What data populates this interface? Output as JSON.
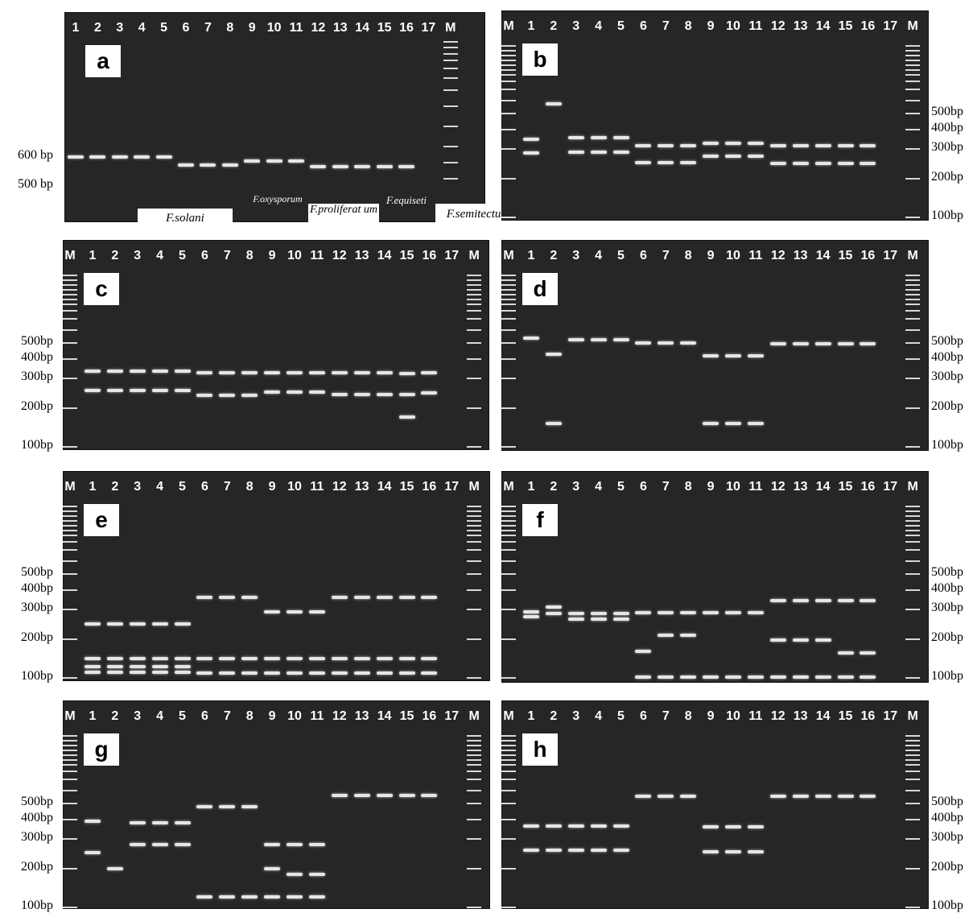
{
  "panels": [
    {
      "letter": "a",
      "lanes": [
        "1",
        "2",
        "3",
        "4",
        "5",
        "6",
        "7",
        "8",
        "9",
        "10",
        "11",
        "12",
        "13",
        "14",
        "15",
        "16",
        "17",
        "M"
      ],
      "size_labels": [
        "600 bp",
        "500 bp"
      ],
      "species": [
        "F.solani",
        "F.oxysporum",
        "F.proliferat um",
        "F.equiseti",
        "F.semitectum"
      ]
    },
    {
      "letter": "b",
      "lanes": [
        "M",
        "1",
        "2",
        "3",
        "4",
        "5",
        "6",
        "7",
        "8",
        "9",
        "10",
        "11",
        "12",
        "13",
        "14",
        "15",
        "16",
        "17",
        "M"
      ],
      "size_labels": [
        "500bp",
        "400bp",
        "300bp",
        "200bp",
        "100bp"
      ]
    },
    {
      "letter": "c",
      "lanes": [
        "M",
        "1",
        "2",
        "3",
        "4",
        "5",
        "6",
        "7",
        "8",
        "9",
        "10",
        "11",
        "12",
        "13",
        "14",
        "15",
        "16",
        "17",
        "M"
      ],
      "size_labels": [
        "500bp",
        "400bp",
        "300bp",
        "200bp",
        "100bp"
      ]
    },
    {
      "letter": "d",
      "lanes": [
        "M",
        "1",
        "2",
        "3",
        "4",
        "5",
        "6",
        "7",
        "8",
        "9",
        "10",
        "11",
        "12",
        "13",
        "14",
        "15",
        "16",
        "17",
        "M"
      ],
      "size_labels": [
        "500bp",
        "400bp",
        "300bp",
        "200bp",
        "100bp"
      ]
    },
    {
      "letter": "e",
      "lanes": [
        "M",
        "1",
        "2",
        "3",
        "4",
        "5",
        "6",
        "7",
        "8",
        "9",
        "10",
        "11",
        "12",
        "13",
        "14",
        "15",
        "16",
        "17",
        "M"
      ],
      "size_labels": [
        "500bp",
        "400bp",
        "300bp",
        "200bp",
        "100bp"
      ]
    },
    {
      "letter": "f",
      "lanes": [
        "M",
        "1",
        "2",
        "3",
        "4",
        "5",
        "6",
        "7",
        "8",
        "9",
        "10",
        "11",
        "12",
        "13",
        "14",
        "15",
        "16",
        "17",
        "M"
      ],
      "size_labels": [
        "500bp",
        "400bp",
        "300bp",
        "200bp",
        "100bp"
      ]
    },
    {
      "letter": "g",
      "lanes": [
        "M",
        "1",
        "2",
        "3",
        "4",
        "5",
        "6",
        "7",
        "8",
        "9",
        "10",
        "11",
        "12",
        "13",
        "14",
        "15",
        "16",
        "17",
        "M"
      ],
      "size_labels": [
        "500bp",
        "400bp",
        "300bp",
        "200bp",
        "100bp"
      ]
    },
    {
      "letter": "h",
      "lanes": [
        "M",
        "1",
        "2",
        "3",
        "4",
        "5",
        "6",
        "7",
        "8",
        "9",
        "10",
        "11",
        "12",
        "13",
        "14",
        "15",
        "16",
        "17",
        "M"
      ],
      "size_labels": [
        "500bp",
        "400bp",
        "300bp",
        "200bp",
        "100bp"
      ]
    }
  ]
}
